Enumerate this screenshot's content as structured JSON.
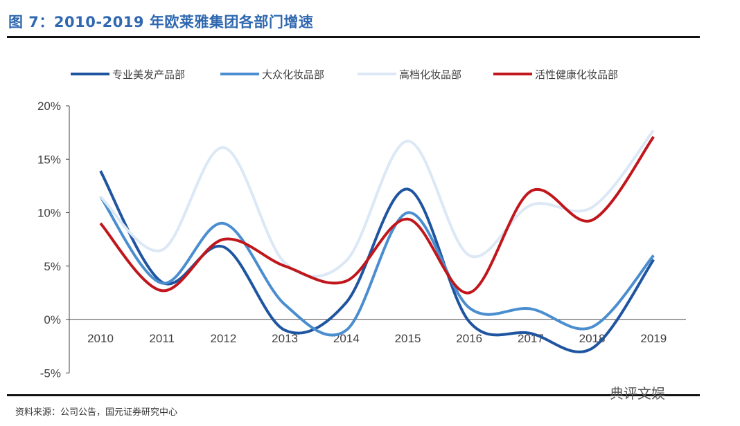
{
  "title": "图 7：2010-2019 年欧莱雅集团各部门增速",
  "source": "资料来源：公司公告，国元证券研究中心",
  "watermark": "典评文娱",
  "chart_data": {
    "type": "line",
    "title": "图 7：2010-2019 年欧莱雅集团各部门增速",
    "xlabel": "",
    "ylabel": "",
    "categories": [
      "2010",
      "2011",
      "2012",
      "2013",
      "2014",
      "2015",
      "2016",
      "2017",
      "2018",
      "2019"
    ],
    "ylim": [
      -5,
      20
    ],
    "yticks": [
      "-5%",
      "0%",
      "5%",
      "10%",
      "15%",
      "20%"
    ],
    "ytick_values": [
      -5,
      0,
      5,
      10,
      15,
      20
    ],
    "grid": false,
    "legend_position": "top",
    "smooth": true,
    "series": [
      {
        "name": "专业美发产品部",
        "color": "#1f55a0",
        "values": [
          13.9,
          3.5,
          6.8,
          -1.0,
          1.6,
          12.2,
          -0.2,
          -1.3,
          -2.7,
          5.6
        ]
      },
      {
        "name": "大众化妆品部",
        "color": "#4a8ed0",
        "values": [
          11.5,
          3.4,
          9.0,
          1.4,
          -1.0,
          10.0,
          1.1,
          1.0,
          -0.7,
          6.0
        ]
      },
      {
        "name": "高档化妆品部",
        "color": "#dce8f5",
        "values": [
          11.5,
          6.5,
          16.1,
          5.3,
          5.5,
          16.7,
          6.0,
          10.7,
          10.5,
          17.7
        ]
      },
      {
        "name": "活性健康化妆品部",
        "color": "#c0161c",
        "values": [
          9.0,
          2.7,
          7.5,
          5.0,
          3.6,
          9.4,
          2.5,
          12.0,
          9.3,
          17.1
        ]
      }
    ]
  }
}
